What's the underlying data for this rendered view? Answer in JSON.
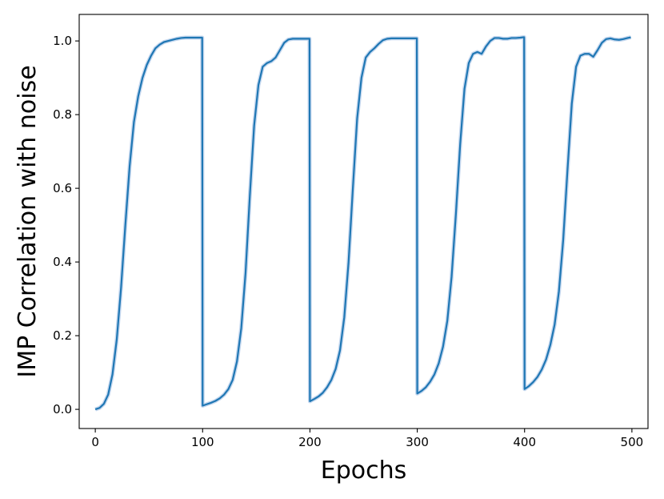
{
  "chart_data": {
    "type": "line",
    "title": "",
    "xlabel": "Epochs",
    "ylabel": "IMP Correlation with noise",
    "xlim": [
      -15,
      515
    ],
    "ylim": [
      -0.052,
      1.072
    ],
    "xticks": [
      0,
      100,
      200,
      300,
      400,
      500
    ],
    "xtick_labels": [
      "0",
      "100",
      "200",
      "300",
      "400",
      "500"
    ],
    "yticks": [
      0.0,
      0.2,
      0.4,
      0.6,
      0.8,
      1.0
    ],
    "ytick_labels": [
      "0.0",
      "0.2",
      "0.4",
      "0.6",
      "0.8",
      "1.0"
    ],
    "grid": false,
    "legend": false,
    "line_color": "#1f77b4",
    "band_color": "#aec7e8",
    "series": [
      {
        "x": [
          0,
          4,
          8,
          12,
          16,
          20,
          24,
          28,
          32,
          36,
          40,
          44,
          48,
          52,
          56,
          60,
          64,
          68,
          72,
          76,
          80,
          84,
          88,
          92,
          96,
          99,
          99.6,
          100,
          104,
          108,
          112,
          116,
          120,
          124,
          128,
          132,
          136,
          140,
          144,
          148,
          152,
          156,
          160,
          164,
          168,
          172,
          176,
          180,
          184,
          188,
          192,
          196,
          199,
          199.6,
          200,
          204,
          208,
          212,
          216,
          220,
          224,
          228,
          232,
          236,
          240,
          244,
          248,
          252,
          256,
          260,
          264,
          268,
          272,
          276,
          280,
          284,
          288,
          292,
          296,
          299,
          299.6,
          300,
          304,
          308,
          312,
          316,
          320,
          324,
          328,
          332,
          336,
          340,
          344,
          348,
          352,
          356,
          360,
          364,
          368,
          372,
          376,
          380,
          384,
          388,
          392,
          396,
          399,
          399.6,
          400,
          404,
          408,
          412,
          416,
          420,
          424,
          428,
          432,
          436,
          440,
          444,
          448,
          452,
          456,
          460,
          464,
          468,
          472,
          476,
          480,
          484,
          488,
          492,
          496,
          499
        ],
        "y": [
          0.0,
          0.004,
          0.015,
          0.04,
          0.095,
          0.19,
          0.33,
          0.5,
          0.66,
          0.78,
          0.85,
          0.9,
          0.935,
          0.96,
          0.98,
          0.99,
          0.997,
          1.0,
          1.003,
          1.006,
          1.008,
          1.009,
          1.009,
          1.009,
          1.009,
          1.009,
          1.009,
          0.01,
          0.014,
          0.018,
          0.023,
          0.03,
          0.04,
          0.055,
          0.08,
          0.13,
          0.22,
          0.37,
          0.58,
          0.77,
          0.88,
          0.93,
          0.94,
          0.945,
          0.955,
          0.975,
          0.995,
          1.004,
          1.006,
          1.006,
          1.006,
          1.006,
          1.006,
          1.006,
          0.022,
          0.028,
          0.035,
          0.045,
          0.06,
          0.08,
          0.11,
          0.16,
          0.25,
          0.4,
          0.6,
          0.79,
          0.9,
          0.955,
          0.97,
          0.98,
          0.992,
          1.002,
          1.006,
          1.007,
          1.007,
          1.007,
          1.007,
          1.007,
          1.007,
          1.007,
          1.007,
          0.043,
          0.05,
          0.06,
          0.075,
          0.095,
          0.125,
          0.17,
          0.24,
          0.36,
          0.53,
          0.72,
          0.87,
          0.94,
          0.965,
          0.97,
          0.965,
          0.985,
          1.0,
          1.008,
          1.008,
          1.006,
          1.006,
          1.008,
          1.008,
          1.009,
          1.01,
          1.01,
          0.055,
          0.063,
          0.074,
          0.088,
          0.108,
          0.135,
          0.175,
          0.23,
          0.32,
          0.46,
          0.65,
          0.83,
          0.93,
          0.96,
          0.965,
          0.965,
          0.957,
          0.975,
          0.995,
          1.005,
          1.007,
          1.004,
          1.003,
          1.005,
          1.008,
          1.01
        ]
      }
    ]
  }
}
